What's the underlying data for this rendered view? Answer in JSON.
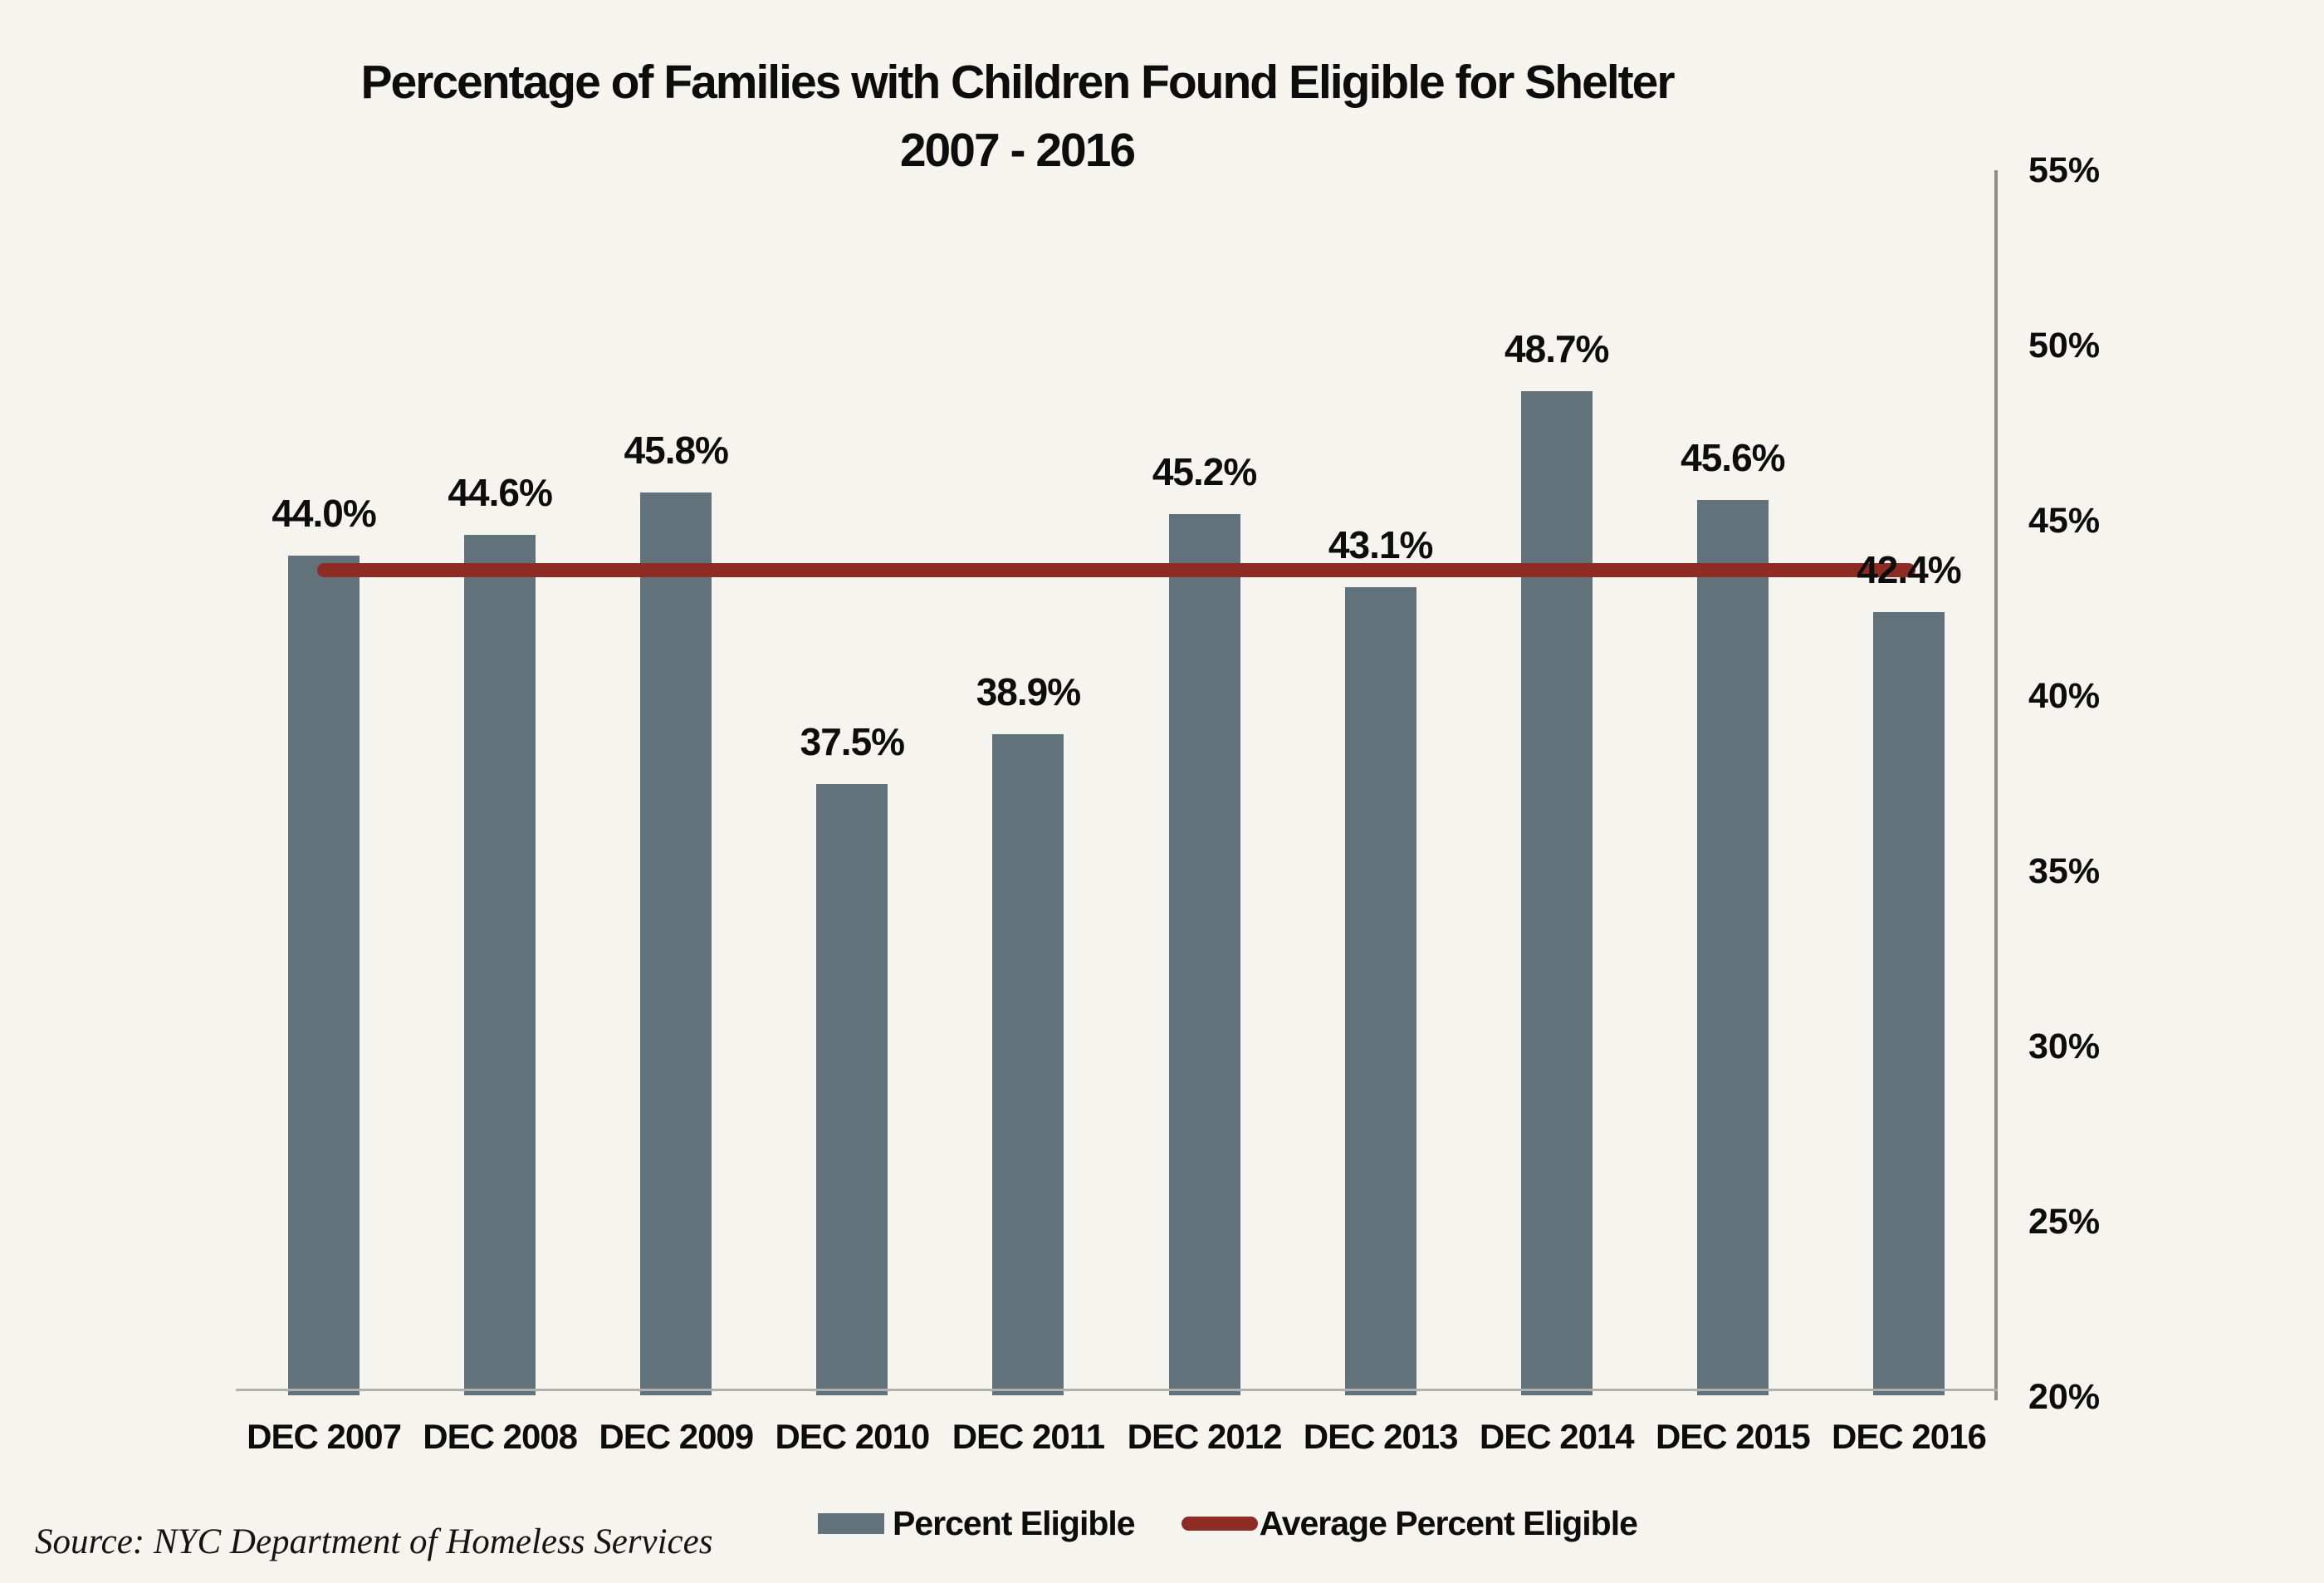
{
  "title": {
    "line1": "Percentage of Families with Children Found Eligible for Shelter",
    "line2": "2007 - 2016"
  },
  "source": {
    "text": "Source:  NYC Department of Homeless Services"
  },
  "legend": {
    "bar_label": "Percent Eligible",
    "line_label": "Average Percent Eligible"
  },
  "colors": {
    "background": "#f5f4ef",
    "bar": "#62727a",
    "average_line": "#8e2b24",
    "axis_vertical": "#8f8d8a",
    "axis_bottom": "#b3b1ad",
    "text": "#0d0d0d"
  },
  "chart_data": {
    "type": "bar",
    "title": "Percentage of Families with Children Found Eligible for Shelter 2007 - 2016",
    "categories": [
      "DEC 2007",
      "DEC 2008",
      "DEC 2009",
      "DEC 2010",
      "DEC 2011",
      "DEC 2012",
      "DEC 2013",
      "DEC 2014",
      "DEC 2015",
      "DEC 2016"
    ],
    "series": [
      {
        "name": "Percent Eligible",
        "type": "bar",
        "values": [
          44.0,
          44.6,
          45.8,
          37.5,
          38.9,
          45.2,
          43.1,
          48.7,
          45.6,
          42.4
        ]
      },
      {
        "name": "Average Percent Eligible",
        "type": "line",
        "value": 43.6
      }
    ],
    "value_labels": [
      "44.0%",
      "44.6%",
      "45.8%",
      "37.5%",
      "38.9%",
      "45.2%",
      "43.1%",
      "48.7%",
      "45.6%",
      "42.4%"
    ],
    "xlabel": "",
    "ylabel": "",
    "y_axis": {
      "min": 20,
      "max": 55,
      "step": 5,
      "position": "right",
      "tick_labels": [
        "55%",
        "50%",
        "45%",
        "40%",
        "35%",
        "30%",
        "25%",
        "20%"
      ]
    },
    "grid": false,
    "legend_position": "bottom"
  }
}
